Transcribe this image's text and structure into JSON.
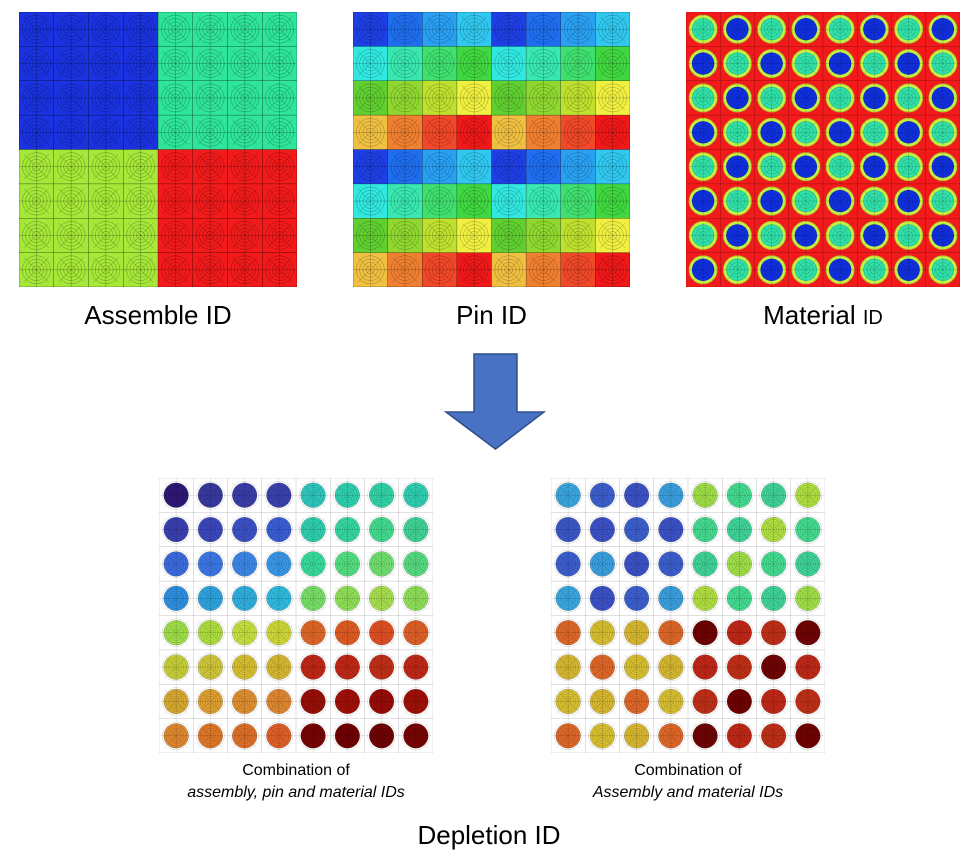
{
  "top": {
    "assembly": {
      "label": "Assemble ID"
    },
    "pin": {
      "label": "Pin ID"
    },
    "material": {
      "label_main": "Material",
      "label_suffix": "ID"
    }
  },
  "bottom": {
    "left": {
      "line1": "Combination of",
      "line2": "assembly, pin and material IDs"
    },
    "right": {
      "line1": "Combination of",
      "line2": "Assembly and material IDs"
    }
  },
  "footer": {
    "label": "Depletion ID"
  },
  "colors": {
    "assembly": [
      [
        "#1a32e0",
        "#2ee59a"
      ],
      [
        "#a6e838",
        "#f21a1a"
      ]
    ],
    "pin_rows": [
      [
        "#1e3fe6",
        "#1f6ef0",
        "#2aa0f2",
        "#30c8f0"
      ],
      [
        "#30e8e0",
        "#38e8b0",
        "#40e070",
        "#40d840"
      ],
      [
        "#60d030",
        "#90d830",
        "#c0e030",
        "#f0f040"
      ],
      [
        "#f0c040",
        "#f08030",
        "#f04828",
        "#f01818"
      ]
    ],
    "material": {
      "moderator": "#f21a1a",
      "ring": "#c8f040",
      "fuel_a": "#1030e0",
      "fuel_b": "#30e0a8"
    },
    "left_combo": [
      [
        "#301878",
        "#383aa0",
        "#3a3ea8",
        "#3a42b0",
        "#2ec8c0",
        "#30d0b0",
        "#32d4a8",
        "#30d0b4"
      ],
      [
        "#3a40b0",
        "#3c48c0",
        "#3c52c8",
        "#3a60d8",
        "#2ed0b0",
        "#36d8a0",
        "#44dc90",
        "#40d498"
      ],
      [
        "#3c6ce0",
        "#3c78e8",
        "#3c88ea",
        "#3a98e8",
        "#38dc9c",
        "#54e080",
        "#70e070",
        "#58dc80"
      ],
      [
        "#2e90e0",
        "#2ea4e0",
        "#30b0e0",
        "#2ebce0",
        "#78e068",
        "#90e058",
        "#a8e050",
        "#90e058"
      ],
      [
        "#a0e048",
        "#b0e040",
        "#c8e040",
        "#d0d838",
        "#e06828",
        "#e05c24",
        "#e05024",
        "#e06028"
      ],
      [
        "#c8d038",
        "#d0c838",
        "#d8c030",
        "#d8b830",
        "#c02818",
        "#c02818",
        "#c03018",
        "#c02818"
      ],
      [
        "#d8a830",
        "#e0a030",
        "#e09030",
        "#e08830",
        "#981008",
        "#a01008",
        "#980c08",
        "#a01008"
      ],
      [
        "#e08830",
        "#e07828",
        "#e07028",
        "#e06028",
        "#780404",
        "#700202",
        "#700404",
        "#780404"
      ]
    ],
    "right_combo": [
      [
        "#3aa8e0",
        "#3c60d0",
        "#3c52c8",
        "#3aa0e0",
        "#a0e048",
        "#44dc90",
        "#40d498",
        "#b0e040"
      ],
      [
        "#3c58c8",
        "#3c52c8",
        "#3c60d0",
        "#3c52c8",
        "#44dc90",
        "#40d498",
        "#b0e040",
        "#44dc90"
      ],
      [
        "#3c60d0",
        "#3aa0e0",
        "#3c52c8",
        "#3c60d0",
        "#40d498",
        "#a0e048",
        "#44dc90",
        "#40d498"
      ],
      [
        "#3aa8e0",
        "#3c52c8",
        "#3c60d0",
        "#3aa0e0",
        "#b0e040",
        "#44dc90",
        "#40d498",
        "#a0e048"
      ],
      [
        "#e06828",
        "#d8c030",
        "#d8b830",
        "#e06828",
        "#700202",
        "#c02818",
        "#c03018",
        "#700404"
      ],
      [
        "#d8b830",
        "#e06828",
        "#d8c030",
        "#d8b830",
        "#c02818",
        "#c03018",
        "#700404",
        "#c02818"
      ],
      [
        "#d8c030",
        "#d8b830",
        "#e06828",
        "#d8c030",
        "#c03018",
        "#700202",
        "#c02818",
        "#c03018"
      ],
      [
        "#e06828",
        "#d8c030",
        "#d8b830",
        "#e06828",
        "#700404",
        "#c02818",
        "#c03018",
        "#700202"
      ]
    ],
    "arrow_fill": "#4a72c4",
    "arrow_stroke": "#2e4f8a"
  }
}
